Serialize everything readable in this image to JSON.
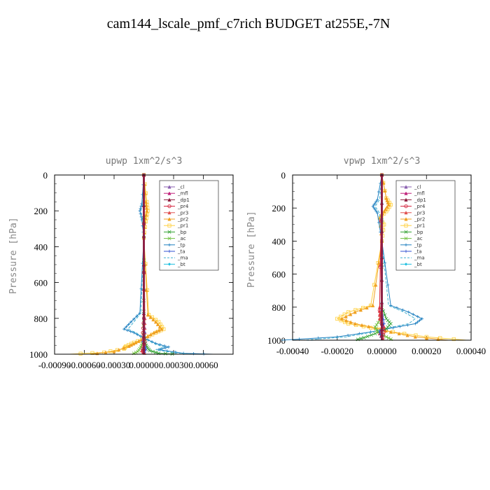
{
  "figure": {
    "title": "cam144_lscale_pmf_c7rich  BUDGET at255E,-7N"
  },
  "legend_colors": {
    "_cl": "#8a5fb0",
    "_mfl": "#c0207a",
    "_dp1": "#8b1a3a",
    "_pr4": "#d4203a",
    "_pr3": "#e05050",
    "_pr2": "#f0a020",
    "_pr1": "#ffd040",
    "_bp": "#30a030",
    "_ac": "#70c040",
    "_tp": "#2080c0",
    "_ta": "#3050d0",
    "_ma": "#40b0d0",
    "_bt": "#20c0e0"
  },
  "chart_data": [
    {
      "type": "line",
      "title": "upwp   1xm^2/s^3",
      "ylabel": "Pressure [hPa]",
      "xlabel": "",
      "xlim": [
        -0.0009,
        0.0009
      ],
      "ylim": [
        1000,
        0
      ],
      "xticks": [
        "-0.00090",
        "-0.00060",
        "-0.00030",
        "0.00000",
        "0.00030",
        "0.00060"
      ],
      "xtick_values": [
        -0.0009,
        -0.0006,
        -0.0003,
        0,
        0.0003,
        0.0006
      ],
      "yticks": [
        "0",
        "200",
        "400",
        "600",
        "800",
        "1000"
      ],
      "ytick_values": [
        0,
        200,
        400,
        600,
        800,
        1000
      ],
      "legend": [
        "_cl",
        "_mfl",
        "_dp1",
        "_pr4",
        "_pr3",
        "_pr2",
        "_pr1",
        "_bp",
        "_ac",
        "_tp",
        "_ta",
        "_ma",
        "_bt"
      ],
      "legend_placement": "top-right",
      "series": [
        {
          "key": "_pr1",
          "x": [
            0,
            3e-05,
            4e-05,
            2e-05,
            0,
            5e-05,
            0.00015,
            0.0002,
            0.00012,
            2e-05,
            -0.0001,
            -0.00018,
            -0.0002,
            -0.0004,
            -0.00075
          ],
          "y": [
            0,
            150,
            200,
            260,
            350,
            780,
            820,
            860,
            880,
            910,
            935,
            955,
            970,
            990,
            1000
          ]
        },
        {
          "key": "_pr2",
          "x": [
            0,
            2e-05,
            3e-05,
            1e-05,
            0,
            4e-05,
            0.00012,
            0.00018,
            0.0001,
            1e-05,
            -8e-05,
            -0.00015,
            -0.0003,
            -0.00055
          ],
          "y": [
            0,
            150,
            200,
            260,
            350,
            780,
            820,
            860,
            880,
            910,
            935,
            955,
            985,
            1000
          ]
        },
        {
          "key": "_tp",
          "x": [
            0,
            -2e-05,
            -4e-05,
            -2e-05,
            0,
            -4e-05,
            -0.00013,
            -0.0002,
            -0.0001,
            0,
            0.00012,
            0.00025,
            0.00015,
            0.0004,
            0.0007
          ],
          "y": [
            0,
            160,
            200,
            250,
            350,
            770,
            820,
            860,
            880,
            910,
            940,
            960,
            975,
            995,
            1000
          ]
        },
        {
          "key": "_ma",
          "x": [
            0,
            -1e-05,
            -3e-05,
            -1e-05,
            0,
            -3e-05,
            -0.0001,
            -0.00016,
            -8e-05,
            0,
            0.0001,
            0.0002,
            0.00012,
            0.0003,
            0.0005
          ],
          "y": [
            0,
            160,
            200,
            250,
            350,
            770,
            820,
            860,
            880,
            910,
            940,
            960,
            975,
            992,
            1000
          ]
        },
        {
          "key": "_bp",
          "x": [
            0,
            0,
            0,
            1e-05,
            3e-05,
            6e-05,
            0.00015,
            0.00035
          ],
          "y": [
            0,
            700,
            880,
            930,
            960,
            980,
            995,
            1000
          ]
        },
        {
          "key": "_ac",
          "x": [
            0,
            0,
            -1e-05,
            -3e-05,
            -6e-05,
            -0.00012
          ],
          "y": [
            0,
            800,
            930,
            960,
            985,
            1000
          ]
        },
        {
          "key": "_pr3",
          "x": [
            0,
            1e-05,
            1e-05,
            -1e-05,
            1e-05,
            -2e-05,
            2e-05
          ],
          "y": [
            0,
            800,
            880,
            920,
            950,
            980,
            1000
          ]
        },
        {
          "key": "_pr4",
          "x": [
            0,
            0,
            -1e-05,
            1e-05,
            -1e-05,
            0
          ],
          "y": [
            0,
            800,
            880,
            930,
            970,
            1000
          ]
        },
        {
          "key": "_ta",
          "x": [
            0,
            0,
            1e-05,
            -1e-05,
            2e-05,
            0
          ],
          "y": [
            0,
            800,
            880,
            930,
            970,
            1000
          ]
        },
        {
          "key": "_mfl",
          "x": [
            0,
            0,
            0,
            0
          ],
          "y": [
            0,
            500,
            900,
            1000
          ]
        },
        {
          "key": "_cl",
          "x": [
            0,
            0,
            0,
            0
          ],
          "y": [
            0,
            500,
            900,
            1000
          ]
        },
        {
          "key": "_bt",
          "x": [
            0,
            0,
            0,
            0
          ],
          "y": [
            0,
            500,
            900,
            1000
          ]
        },
        {
          "key": "_dp1",
          "x": [
            0,
            0,
            0,
            0
          ],
          "y": [
            0,
            500,
            900,
            1000
          ]
        }
      ]
    },
    {
      "type": "line",
      "title": "vpwp   1xm^2/s^3",
      "ylabel": "Pressure [hPa]",
      "xlabel": "",
      "xlim": [
        -0.0004,
        0.0004
      ],
      "ylim": [
        1000,
        0
      ],
      "xticks": [
        "-0.00040",
        "-0.00020",
        "0.00000",
        "0.00020",
        "0.00040"
      ],
      "xtick_values": [
        -0.0004,
        -0.0002,
        0,
        0.0002,
        0.0004
      ],
      "yticks": [
        "0",
        "200",
        "400",
        "600",
        "800",
        "1000"
      ],
      "ytick_values": [
        0,
        200,
        400,
        600,
        800,
        1000
      ],
      "legend": [
        "_cl",
        "_mfl",
        "_dp1",
        "_pr4",
        "_pr3",
        "_pr2",
        "_pr1",
        "_bp",
        "_ac",
        "_tp",
        "_ta",
        "_ma",
        "_bt"
      ],
      "legend_placement": "top-right",
      "series": [
        {
          "key": "_pr1",
          "x": [
            0,
            2e-05,
            4e-05,
            2e-05,
            -1e-05,
            1e-05,
            0,
            -5e-05,
            -0.00015,
            -0.0002,
            -0.00015,
            -5e-05,
            5e-05,
            0.0002,
            0.00038
          ],
          "y": [
            0,
            140,
            180,
            220,
            260,
            300,
            400,
            790,
            830,
            870,
            900,
            925,
            950,
            980,
            1000
          ]
        },
        {
          "key": "_pr2",
          "x": [
            0,
            2e-05,
            3e-05,
            1e-05,
            -1e-05,
            0,
            -4e-05,
            -0.00012,
            -0.00018,
            -0.00012,
            -3e-05,
            4e-05,
            0.00015,
            0.0003
          ],
          "y": [
            0,
            140,
            180,
            220,
            260,
            400,
            790,
            830,
            870,
            900,
            925,
            950,
            980,
            1000
          ]
        },
        {
          "key": "_tp",
          "x": [
            0,
            -2e-05,
            -4e-05,
            -2e-05,
            0,
            4e-05,
            0.00012,
            0.00018,
            0.00015,
            5e-05,
            -5e-05,
            -0.0002,
            -0.00045
          ],
          "y": [
            0,
            150,
            190,
            230,
            400,
            790,
            830,
            870,
            900,
            925,
            950,
            980,
            1000
          ]
        },
        {
          "key": "_ma",
          "x": [
            0,
            -1e-05,
            -3e-05,
            -1e-05,
            0,
            3e-05,
            0.0001,
            0.00015,
            0.00012,
            3e-05,
            -4e-05,
            -0.00016,
            -0.00035
          ],
          "y": [
            0,
            150,
            190,
            230,
            400,
            790,
            830,
            870,
            900,
            925,
            950,
            980,
            1000
          ]
        },
        {
          "key": "_bp",
          "x": [
            0,
            0,
            2e-05,
            4e-05,
            2e-05,
            -3e-05,
            -8e-05,
            -0.00012
          ],
          "y": [
            0,
            800,
            870,
            900,
            930,
            960,
            985,
            1000
          ]
        },
        {
          "key": "_ac",
          "x": [
            0,
            0,
            -1e-05,
            -3e-05,
            -2e-05,
            2e-05,
            5e-05
          ],
          "y": [
            0,
            820,
            880,
            920,
            950,
            980,
            1000
          ]
        },
        {
          "key": "_pr3",
          "x": [
            0,
            -1e-05,
            -1e-05,
            1e-05,
            -1e-05,
            1e-05
          ],
          "y": [
            0,
            800,
            870,
            920,
            960,
            1000
          ]
        },
        {
          "key": "_pr4",
          "x": [
            0,
            -1e-05,
            0,
            1e-05,
            0
          ],
          "y": [
            0,
            820,
            900,
            950,
            1000
          ]
        },
        {
          "key": "_ta",
          "x": [
            0,
            0,
            1e-05,
            -1e-05,
            0
          ],
          "y": [
            0,
            820,
            900,
            950,
            1000
          ]
        },
        {
          "key": "_mfl",
          "x": [
            0,
            0,
            0,
            0
          ],
          "y": [
            0,
            500,
            900,
            1000
          ]
        },
        {
          "key": "_cl",
          "x": [
            0,
            0,
            0,
            0
          ],
          "y": [
            0,
            500,
            900,
            1000
          ]
        },
        {
          "key": "_bt",
          "x": [
            0,
            0,
            0,
            0
          ],
          "y": [
            0,
            500,
            900,
            1000
          ]
        },
        {
          "key": "_dp1",
          "x": [
            0,
            0,
            0,
            0
          ],
          "y": [
            0,
            500,
            900,
            1000
          ]
        }
      ]
    }
  ]
}
